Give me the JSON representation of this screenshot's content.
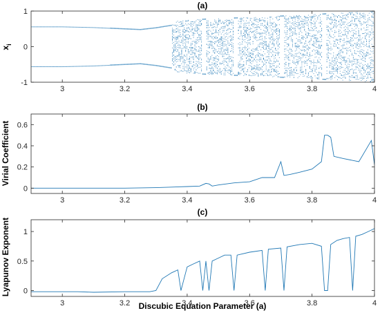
{
  "colors": {
    "series": "#1f77b4",
    "axis": "#262626",
    "background": "#ffffff"
  },
  "chart_data": [
    {
      "type": "scatter",
      "panel": "(a)",
      "title": "(a)",
      "xlabel": "",
      "ylabel": "x",
      "ylabel_subscript": "i",
      "xlim": [
        2.9,
        4.0
      ],
      "ylim": [
        -1,
        1
      ],
      "xticks": [
        "3",
        "3.2",
        "3.4",
        "3.6",
        "3.8",
        "4"
      ],
      "yticks": [
        "-1",
        "0",
        "1"
      ],
      "grid": false,
      "legend": "none",
      "description_points": {
        "x": [
          2.9,
          3.0,
          3.1,
          3.2,
          3.25,
          3.3,
          3.35,
          3.37,
          3.4,
          3.5,
          3.6,
          3.7,
          3.8,
          3.9,
          4.0
        ],
        "y_upper_bound": [
          0.56,
          0.56,
          0.54,
          0.5,
          0.48,
          0.53,
          0.6,
          0.72,
          0.75,
          0.79,
          0.82,
          0.86,
          0.9,
          0.95,
          1.0
        ],
        "y_lower_bound": [
          -0.56,
          -0.56,
          -0.54,
          -0.5,
          -0.48,
          -0.53,
          -0.6,
          -0.72,
          -0.75,
          -0.79,
          -0.82,
          -0.86,
          -0.9,
          -0.95,
          -1.0
        ]
      },
      "periodic_windows": [
        3.455,
        3.555,
        3.705,
        3.84
      ]
    },
    {
      "type": "line",
      "panel": "(b)",
      "title": "(b)",
      "xlabel": "",
      "ylabel": "Virial Coefficient",
      "xlim": [
        2.9,
        4.0
      ],
      "ylim": [
        -0.05,
        0.7
      ],
      "xticks": [
        "3",
        "3.2",
        "3.4",
        "3.6",
        "3.8",
        "4"
      ],
      "yticks": [
        "0",
        "0.2",
        "0.4",
        "0.6"
      ],
      "grid": false,
      "legend": "none",
      "x": [
        2.9,
        3.0,
        3.1,
        3.2,
        3.3,
        3.35,
        3.4,
        3.44,
        3.46,
        3.47,
        3.48,
        3.5,
        3.55,
        3.6,
        3.64,
        3.68,
        3.7,
        3.71,
        3.73,
        3.76,
        3.8,
        3.83,
        3.84,
        3.85,
        3.86,
        3.87,
        3.9,
        3.95,
        3.99,
        4.0
      ],
      "y": [
        0.0,
        0.0,
        0.0,
        0.0,
        0.005,
        0.01,
        0.015,
        0.02,
        0.045,
        0.04,
        0.02,
        0.03,
        0.05,
        0.06,
        0.1,
        0.1,
        0.25,
        0.12,
        0.13,
        0.15,
        0.18,
        0.25,
        0.5,
        0.5,
        0.48,
        0.3,
        0.28,
        0.25,
        0.45,
        0.22
      ]
    },
    {
      "type": "line",
      "panel": "(c)",
      "title": "(c)",
      "xlabel": "Discubic Equation Parameter (a)",
      "ylabel": "Lyapunov Exponent",
      "xlim": [
        2.9,
        4.0
      ],
      "ylim": [
        -0.1,
        1.2
      ],
      "xticks": [
        "3",
        "3.2",
        "3.4",
        "3.6",
        "3.8",
        "4"
      ],
      "yticks": [
        "0",
        "0.5",
        "1"
      ],
      "grid": false,
      "legend": "none",
      "x": [
        2.9,
        2.95,
        3.0,
        3.05,
        3.1,
        3.2,
        3.25,
        3.28,
        3.3,
        3.32,
        3.35,
        3.37,
        3.38,
        3.4,
        3.42,
        3.44,
        3.45,
        3.46,
        3.47,
        3.48,
        3.5,
        3.52,
        3.54,
        3.55,
        3.56,
        3.6,
        3.64,
        3.65,
        3.66,
        3.7,
        3.71,
        3.72,
        3.76,
        3.8,
        3.83,
        3.84,
        3.85,
        3.86,
        3.88,
        3.9,
        3.92,
        3.93,
        3.94,
        3.96,
        3.98,
        4.0
      ],
      "y": [
        -0.02,
        -0.02,
        -0.02,
        -0.02,
        -0.03,
        -0.02,
        -0.02,
        -0.02,
        0.0,
        0.2,
        0.3,
        0.35,
        0.0,
        0.4,
        0.45,
        0.5,
        0.0,
        0.5,
        0.0,
        0.5,
        0.55,
        0.6,
        0.6,
        0.0,
        0.6,
        0.65,
        0.68,
        0.0,
        0.7,
        0.72,
        0.0,
        0.74,
        0.78,
        0.8,
        0.75,
        0.0,
        0.0,
        0.78,
        0.85,
        0.88,
        0.9,
        0.0,
        0.92,
        0.95,
        1.0,
        1.05
      ]
    }
  ]
}
